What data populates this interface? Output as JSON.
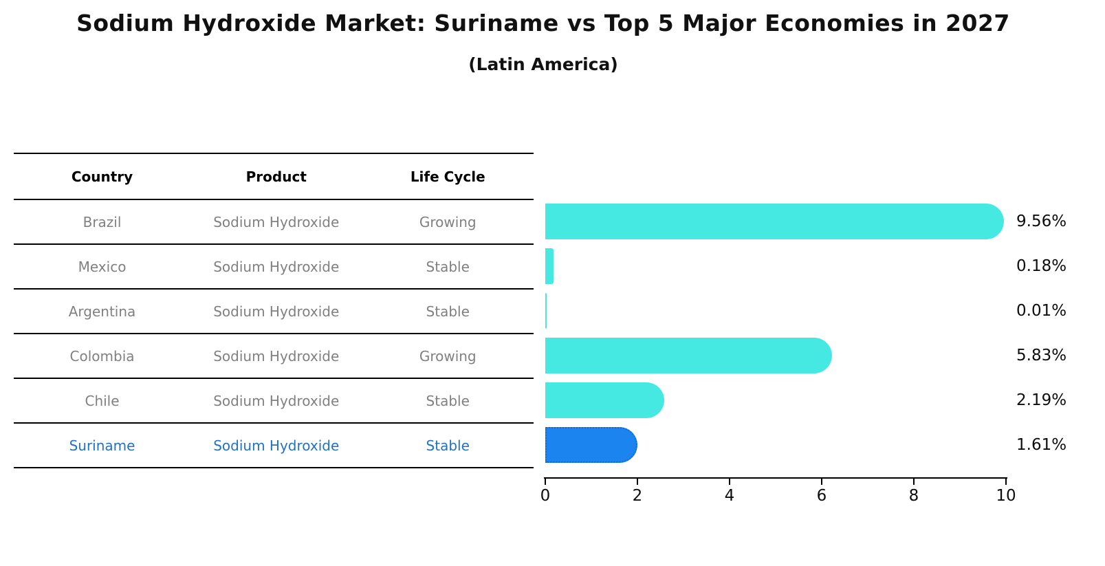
{
  "title": "Sodium Hydroxide Market: Suriname vs Top 5 Major Economies in 2027",
  "subtitle": "(Latin America)",
  "table": {
    "headers": [
      "Country",
      "Product",
      "Life Cycle"
    ],
    "rows": [
      {
        "country": "Brazil",
        "product": "Sodium Hydroxide",
        "life_cycle": "Growing",
        "highlight": false
      },
      {
        "country": "Mexico",
        "product": "Sodium Hydroxide",
        "life_cycle": "Stable",
        "highlight": false
      },
      {
        "country": "Argentina",
        "product": "Sodium Hydroxide",
        "life_cycle": "Stable",
        "highlight": false
      },
      {
        "country": "Colombia",
        "product": "Sodium Hydroxide",
        "life_cycle": "Growing",
        "highlight": false
      },
      {
        "country": "Chile",
        "product": "Sodium Hydroxide",
        "life_cycle": "Stable",
        "highlight": false
      },
      {
        "country": "Suriname",
        "product": "Sodium Hydroxide",
        "life_cycle": "Stable",
        "highlight": true
      }
    ]
  },
  "chart_data": {
    "type": "bar",
    "orientation": "horizontal",
    "categories": [
      "Brazil",
      "Mexico",
      "Argentina",
      "Colombia",
      "Chile",
      "Suriname"
    ],
    "values": [
      9.56,
      0.18,
      0.01,
      5.83,
      2.19,
      1.61
    ],
    "value_labels": [
      "9.56%",
      "0.18%",
      "0.01%",
      "5.83%",
      "2.19%",
      "1.61%"
    ],
    "x_ticks": [
      "0",
      "2",
      "4",
      "6",
      "8",
      "10"
    ],
    "xlim": [
      0,
      10
    ],
    "grid": false,
    "legend": "none",
    "bar_color": "#46E9E2",
    "highlight_index": 5,
    "highlight_bar_color": "#1B84EE",
    "highlight_bar_border_color": "#1565D8",
    "highlight_text_color": "#2272C4",
    "row_text_color": "#808080",
    "axis_color": "#000000"
  }
}
